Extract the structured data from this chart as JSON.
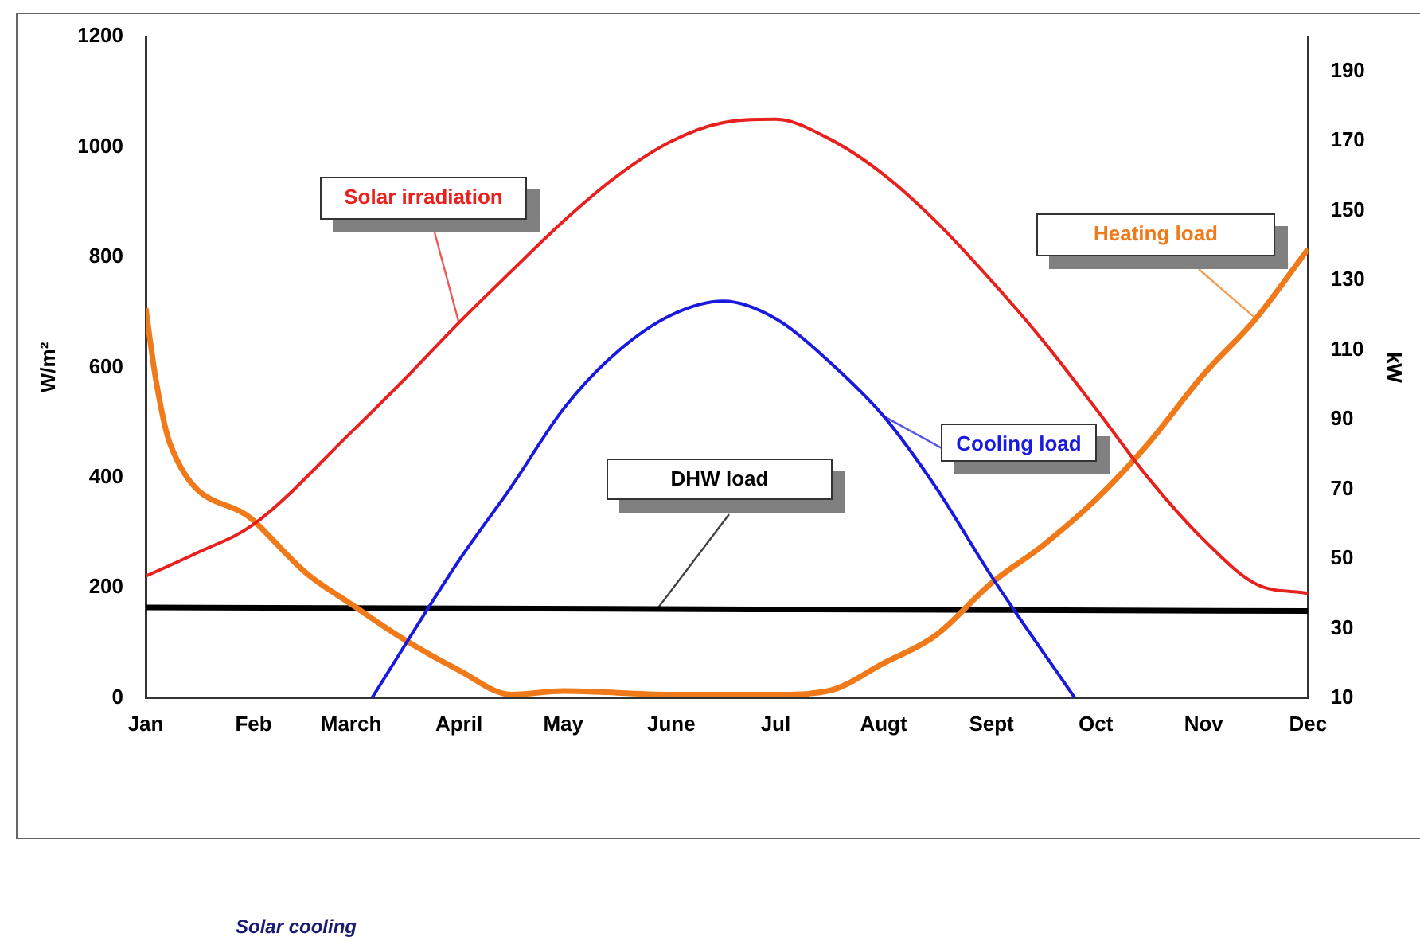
{
  "chart_data": {
    "type": "line",
    "ylabel": "W/m²",
    "y2label": "kW",
    "xlim": [
      "--01-01",
      "--12-01"
    ],
    "xticks": [
      {
        "value": "--01-01",
        "label": "Jan"
      },
      {
        "value": "--02-01",
        "label": "Feb"
      },
      {
        "value": "--03-01",
        "label": "March"
      },
      {
        "value": "--04-01",
        "label": "April"
      },
      {
        "value": "--05-01",
        "label": "May"
      },
      {
        "value": "--06-01",
        "label": "June"
      },
      {
        "value": "--07-01",
        "label": "Jul"
      },
      {
        "value": "--08-01",
        "label": "Augt"
      },
      {
        "value": "--09-01",
        "label": "Sept"
      },
      {
        "value": "--10-01",
        "label": "Oct"
      },
      {
        "value": "--11-01",
        "label": "Nov"
      },
      {
        "value": "--12-01",
        "label": "Dec"
      }
    ],
    "ylim": [
      0,
      1200
    ],
    "yticks": [
      0,
      200,
      400,
      600,
      800,
      1000,
      1200
    ],
    "y2lim": [
      10,
      200
    ],
    "y2ticks": [
      10,
      30,
      50,
      70,
      90,
      110,
      130,
      150,
      170,
      190
    ],
    "grid": false,
    "legend": false,
    "marker": "none",
    "line_style": "solid",
    "series": [
      {
        "name": "Solar irradiation",
        "color": "#e8201e",
        "x": [
          "--01-01",
          "--01-16",
          "--02-01",
          "--03-01",
          "--03-16",
          "--04-01",
          "--04-16",
          "--05-01",
          "--05-16",
          "--06-01",
          "--06-16",
          "--07-01",
          "--07-16",
          "--08-01",
          "--08-16",
          "--09-01",
          "--09-16",
          "--10-01",
          "--10-16",
          "--11-01",
          "--11-16",
          "--12-01"
        ],
        "values": [
          221,
          264,
          315,
          482,
          576,
          681,
          774,
          865,
          945,
          1010,
          1044,
          1050,
          1016,
          950,
          865,
          757,
          647,
          525,
          400,
          287,
          207,
          190
        ]
      },
      {
        "name": "Cooling load",
        "color": "#1a1adf",
        "axis": "y2",
        "x": [
          "--03-07",
          "--04-01",
          "--04-16",
          "--05-01",
          "--05-16",
          "--06-01",
          "--06-16",
          "--07-01",
          "--07-16",
          "--08-01",
          "--08-16",
          "--09-01",
          "--09-25"
        ],
        "values": [
          10,
          49.5,
          70.6,
          93,
          109,
          120,
          124,
          119,
          107,
          91,
          70.6,
          45,
          10
        ]
      },
      {
        "name": "Heating load",
        "color": "#f07a1a",
        "axis": "y2",
        "x": [
          "--01-01",
          "--01-04",
          "--01-08",
          "--02-01",
          "--02-16",
          "--03-01",
          "--03-16",
          "--04-01",
          "--04-16",
          "--05-01",
          "--06-01",
          "--07-01",
          "--07-16",
          "--08-01",
          "--08-16",
          "--09-01",
          "--09-16",
          "--10-01",
          "--10-16",
          "--11-01",
          "--11-16",
          "--12-01"
        ],
        "values": [
          122,
          101,
          83,
          61,
          46,
          37,
          27,
          18,
          11,
          12,
          11,
          11,
          12,
          20,
          28,
          43,
          54,
          67,
          83,
          103,
          119,
          139
        ]
      },
      {
        "name": "DHW load",
        "color": "#000000",
        "axis": "y2",
        "x": [
          "--01-01",
          "--12-01"
        ],
        "values": [
          36,
          35
        ]
      }
    ],
    "annotations": [
      "Solar cooling"
    ]
  }
}
